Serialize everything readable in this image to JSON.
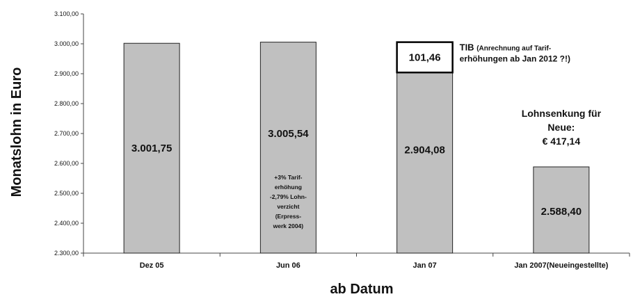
{
  "chart_data": {
    "type": "bar",
    "title": "",
    "ylabel": "Monatslohn in Euro",
    "xlabel": "ab Datum",
    "ylim": [
      2300,
      3100
    ],
    "yticks": [
      2300,
      2400,
      2500,
      2600,
      2700,
      2800,
      2900,
      3000,
      3100
    ],
    "ytick_labels": [
      "2.300,00",
      "2.400,00",
      "2.500,00",
      "2.600,00",
      "2.700,00",
      "2.800,00",
      "2.900,00",
      "3.000,00",
      "3.100,00"
    ],
    "categories": [
      "Dez 05",
      "Jun 06",
      "Jan 07",
      "Jan 2007(Neueingestellte)"
    ],
    "values": [
      3001.75,
      3005.54,
      2904.08,
      2588.4
    ],
    "value_labels": [
      "3.001,75",
      "3.005,54",
      "2.904,08",
      "2.588,40"
    ],
    "stacked_segment": {
      "category": "Jan 07",
      "value": 101.46,
      "label": "101,46",
      "annotation_bold": "TIB",
      "annotation_text": [
        "(Anrechnung auf Tarif-",
        "erhöhungen ab Jan 2012 ?!)"
      ]
    },
    "bar_note": {
      "category": "Jun 06",
      "lines": [
        "+3% Tarif-",
        "erhöhung",
        "-2,79% Lohn-",
        "verzicht",
        "(Erpress-",
        "werk 2004)"
      ]
    },
    "side_annotation": [
      "Lohnsenkung für",
      "Neue:",
      "€ 417,14"
    ],
    "grid": false,
    "legend": "none",
    "colors": {
      "bar": "#c0c0c0",
      "bar_stroke": "#222222",
      "segment": "#ffffff"
    }
  }
}
